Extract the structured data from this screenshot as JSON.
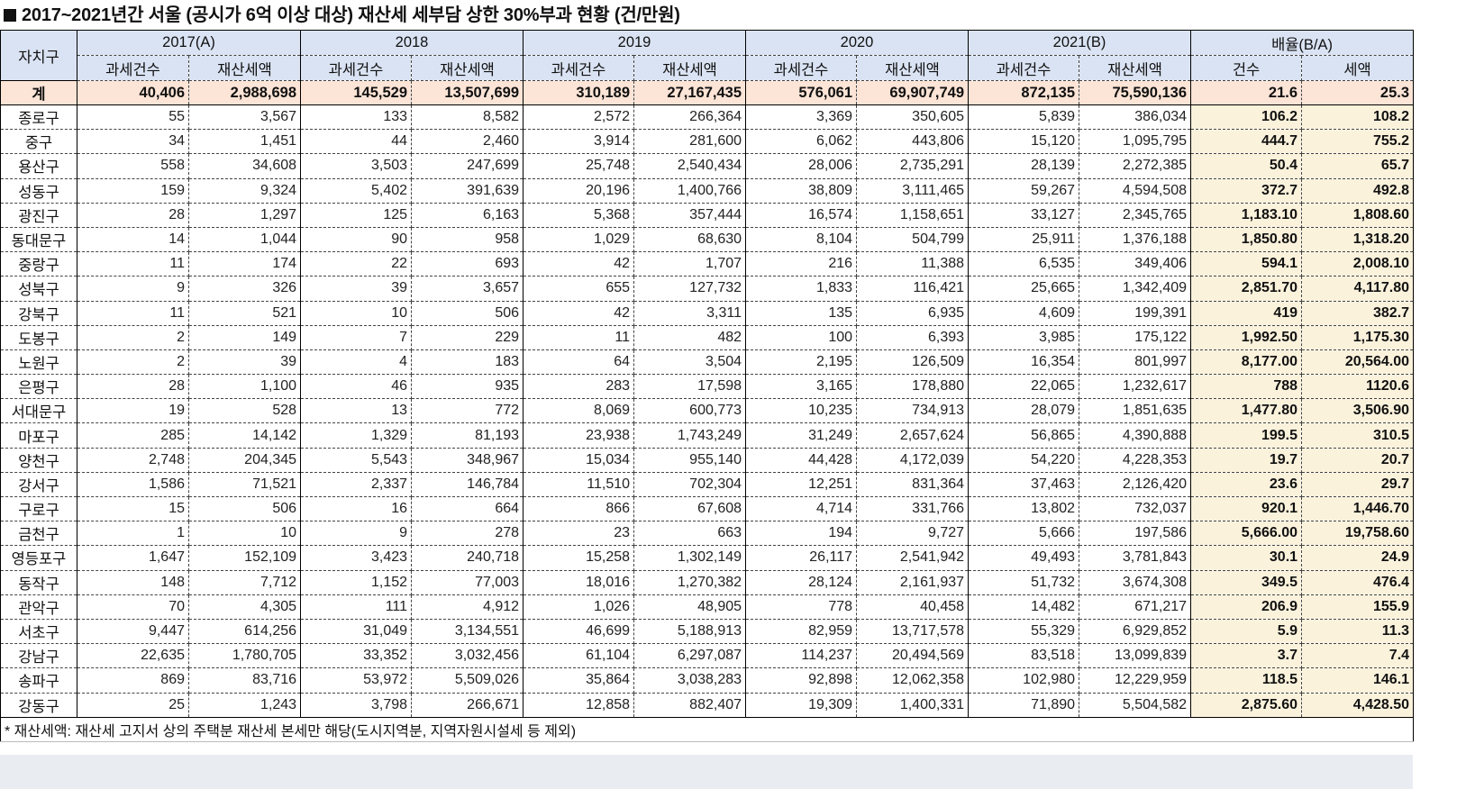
{
  "title": "2017~2021년간 서울 (공시가 6억 이상 대상) 재산세 세부담 상한 30%부과 현황 (건/만원)",
  "header": {
    "district_label": "자치구",
    "years": [
      "2017(A)",
      "2018",
      "2019",
      "2020",
      "2021(B)"
    ],
    "ratio_label": "배율(B/A)",
    "sub_count": "과세건수",
    "sub_amount": "재산세액",
    "ratio_count": "건수",
    "ratio_amount": "세액"
  },
  "total": {
    "name": "계",
    "values": [
      "40,406",
      "2,988,698",
      "145,529",
      "13,507,699",
      "310,189",
      "27,167,435",
      "576,061",
      "69,907,749",
      "872,135",
      "75,590,136"
    ],
    "ratio": [
      "21.6",
      "25.3"
    ]
  },
  "rows": [
    {
      "name": "종로구",
      "values": [
        "55",
        "3,567",
        "133",
        "8,582",
        "2,572",
        "266,364",
        "3,369",
        "350,605",
        "5,839",
        "386,034"
      ],
      "ratio": [
        "106.2",
        "108.2"
      ]
    },
    {
      "name": "중구",
      "values": [
        "34",
        "1,451",
        "44",
        "2,460",
        "3,914",
        "281,600",
        "6,062",
        "443,806",
        "15,120",
        "1,095,795"
      ],
      "ratio": [
        "444.7",
        "755.2"
      ]
    },
    {
      "name": "용산구",
      "values": [
        "558",
        "34,608",
        "3,503",
        "247,699",
        "25,748",
        "2,540,434",
        "28,006",
        "2,735,291",
        "28,139",
        "2,272,385"
      ],
      "ratio": [
        "50.4",
        "65.7"
      ]
    },
    {
      "name": "성동구",
      "values": [
        "159",
        "9,324",
        "5,402",
        "391,639",
        "20,196",
        "1,400,766",
        "38,809",
        "3,111,465",
        "59,267",
        "4,594,508"
      ],
      "ratio": [
        "372.7",
        "492.8"
      ]
    },
    {
      "name": "광진구",
      "values": [
        "28",
        "1,297",
        "125",
        "6,163",
        "5,368",
        "357,444",
        "16,574",
        "1,158,651",
        "33,127",
        "2,345,765"
      ],
      "ratio": [
        "1,183.10",
        "1,808.60"
      ]
    },
    {
      "name": "동대문구",
      "values": [
        "14",
        "1,044",
        "90",
        "958",
        "1,029",
        "68,630",
        "8,104",
        "504,799",
        "25,911",
        "1,376,188"
      ],
      "ratio": [
        "1,850.80",
        "1,318.20"
      ]
    },
    {
      "name": "중랑구",
      "values": [
        "11",
        "174",
        "22",
        "693",
        "42",
        "1,707",
        "216",
        "11,388",
        "6,535",
        "349,406"
      ],
      "ratio": [
        "594.1",
        "2,008.10"
      ]
    },
    {
      "name": "성북구",
      "values": [
        "9",
        "326",
        "39",
        "3,657",
        "655",
        "127,732",
        "1,833",
        "116,421",
        "25,665",
        "1,342,409"
      ],
      "ratio": [
        "2,851.70",
        "4,117.80"
      ]
    },
    {
      "name": "강북구",
      "values": [
        "11",
        "521",
        "10",
        "506",
        "42",
        "3,311",
        "135",
        "6,935",
        "4,609",
        "199,391"
      ],
      "ratio": [
        "419",
        "382.7"
      ]
    },
    {
      "name": "도봉구",
      "values": [
        "2",
        "149",
        "7",
        "229",
        "11",
        "482",
        "100",
        "6,393",
        "3,985",
        "175,122"
      ],
      "ratio": [
        "1,992.50",
        "1,175.30"
      ]
    },
    {
      "name": "노원구",
      "values": [
        "2",
        "39",
        "4",
        "183",
        "64",
        "3,504",
        "2,195",
        "126,509",
        "16,354",
        "801,997"
      ],
      "ratio": [
        "8,177.00",
        "20,564.00"
      ]
    },
    {
      "name": "은평구",
      "values": [
        "28",
        "1,100",
        "46",
        "935",
        "283",
        "17,598",
        "3,165",
        "178,880",
        "22,065",
        "1,232,617"
      ],
      "ratio": [
        "788",
        "1120.6"
      ]
    },
    {
      "name": "서대문구",
      "values": [
        "19",
        "528",
        "13",
        "772",
        "8,069",
        "600,773",
        "10,235",
        "734,913",
        "28,079",
        "1,851,635"
      ],
      "ratio": [
        "1,477.80",
        "3,506.90"
      ]
    },
    {
      "name": "마포구",
      "values": [
        "285",
        "14,142",
        "1,329",
        "81,193",
        "23,938",
        "1,743,249",
        "31,249",
        "2,657,624",
        "56,865",
        "4,390,888"
      ],
      "ratio": [
        "199.5",
        "310.5"
      ]
    },
    {
      "name": "양천구",
      "values": [
        "2,748",
        "204,345",
        "5,543",
        "348,967",
        "15,034",
        "955,140",
        "44,428",
        "4,172,039",
        "54,220",
        "4,228,353"
      ],
      "ratio": [
        "19.7",
        "20.7"
      ]
    },
    {
      "name": "강서구",
      "values": [
        "1,586",
        "71,521",
        "2,337",
        "146,784",
        "11,510",
        "702,304",
        "12,251",
        "831,364",
        "37,463",
        "2,126,420"
      ],
      "ratio": [
        "23.6",
        "29.7"
      ]
    },
    {
      "name": "구로구",
      "values": [
        "15",
        "506",
        "16",
        "664",
        "866",
        "67,608",
        "4,714",
        "331,766",
        "13,802",
        "732,037"
      ],
      "ratio": [
        "920.1",
        "1,446.70"
      ]
    },
    {
      "name": "금천구",
      "values": [
        "1",
        "10",
        "9",
        "278",
        "23",
        "663",
        "194",
        "9,727",
        "5,666",
        "197,586"
      ],
      "ratio": [
        "5,666.00",
        "19,758.60"
      ]
    },
    {
      "name": "영등포구",
      "values": [
        "1,647",
        "152,109",
        "3,423",
        "240,718",
        "15,258",
        "1,302,149",
        "26,117",
        "2,541,942",
        "49,493",
        "3,781,843"
      ],
      "ratio": [
        "30.1",
        "24.9"
      ]
    },
    {
      "name": "동작구",
      "values": [
        "148",
        "7,712",
        "1,152",
        "77,003",
        "18,016",
        "1,270,382",
        "28,124",
        "2,161,937",
        "51,732",
        "3,674,308"
      ],
      "ratio": [
        "349.5",
        "476.4"
      ]
    },
    {
      "name": "관악구",
      "values": [
        "70",
        "4,305",
        "111",
        "4,912",
        "1,026",
        "48,905",
        "778",
        "40,458",
        "14,482",
        "671,217"
      ],
      "ratio": [
        "206.9",
        "155.9"
      ]
    },
    {
      "name": "서초구",
      "values": [
        "9,447",
        "614,256",
        "31,049",
        "3,134,551",
        "46,699",
        "5,188,913",
        "82,959",
        "13,717,578",
        "55,329",
        "6,929,852"
      ],
      "ratio": [
        "5.9",
        "11.3"
      ]
    },
    {
      "name": "강남구",
      "values": [
        "22,635",
        "1,780,705",
        "33,352",
        "3,032,456",
        "61,104",
        "6,297,087",
        "114,237",
        "20,494,569",
        "83,518",
        "13,099,839"
      ],
      "ratio": [
        "3.7",
        "7.4"
      ]
    },
    {
      "name": "송파구",
      "values": [
        "869",
        "83,716",
        "53,972",
        "5,509,026",
        "35,864",
        "3,038,283",
        "92,898",
        "12,062,358",
        "102,980",
        "12,229,959"
      ],
      "ratio": [
        "118.5",
        "146.1"
      ]
    },
    {
      "name": "강동구",
      "values": [
        "25",
        "1,243",
        "3,798",
        "266,671",
        "12,858",
        "882,407",
        "19,309",
        "1,400,331",
        "71,890",
        "5,504,582"
      ],
      "ratio": [
        "2,875.60",
        "4,428.50"
      ]
    }
  ],
  "footnote": "* 재산세액: 재산세 고지서 상의 주택분 재산세 본세만 해당(도시지역분, 지역자원시설세 등 제외)",
  "colors": {
    "header_bg": "#dae3f3",
    "total_bg": "#fce4d6",
    "ratio_bg": "#fbf2dc"
  }
}
